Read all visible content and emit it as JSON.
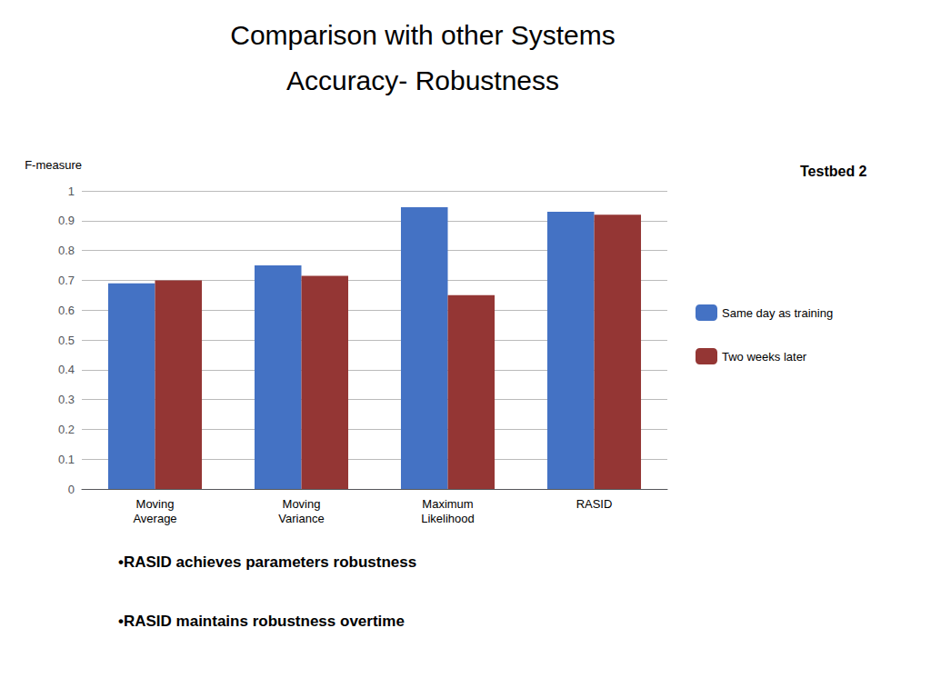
{
  "chart_data": {
    "type": "bar",
    "title": "Comparison with other Systems",
    "subtitle": "Accuracy- Robustness",
    "ylabel": "F-measure",
    "annotations": [
      "Testbed 2",
      "•RASID achieves parameters robustness",
      "•RASID maintains robustness overtime"
    ],
    "categories": [
      "Moving\nAverage",
      "Moving\nVariance",
      "Maximum\nLikelihood",
      "RASID"
    ],
    "series": [
      {
        "name": "Same day as training",
        "color": "#4472C4",
        "values": [
          0.69,
          0.75,
          0.945,
          0.93
        ]
      },
      {
        "name": "Two weeks later",
        "color": "#943634",
        "values": [
          0.7,
          0.715,
          0.65,
          0.92
        ]
      }
    ],
    "ylim": [
      0,
      1.0
    ],
    "yticks": [
      0,
      0.1,
      0.2,
      0.3,
      0.4,
      0.5,
      0.6,
      0.7,
      0.8,
      0.9,
      1
    ],
    "grid": true,
    "legend": "right"
  }
}
